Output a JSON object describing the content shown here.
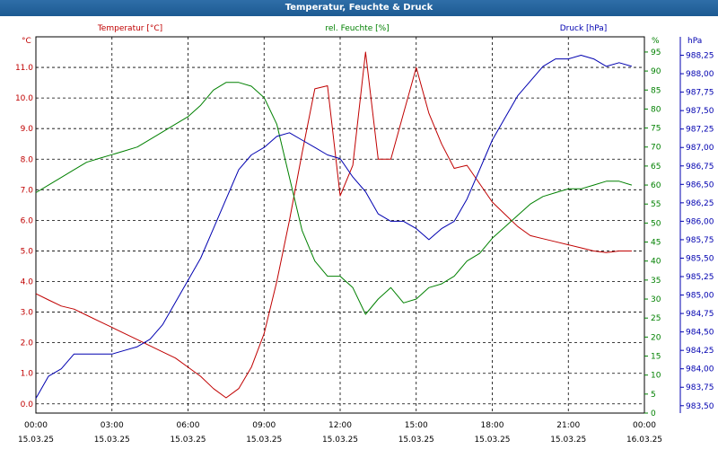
{
  "chart_data": {
    "type": "line",
    "title": "Temperatur, Feuchte & Druck",
    "x": [
      "15.03.25 00:00",
      "15.03.25 00:30",
      "15.03.25 01:00",
      "15.03.25 01:30",
      "15.03.25 02:00",
      "15.03.25 02:30",
      "15.03.25 03:00",
      "15.03.25 03:30",
      "15.03.25 04:00",
      "15.03.25 04:30",
      "15.03.25 05:00",
      "15.03.25 05:30",
      "15.03.25 06:00",
      "15.03.25 06:30",
      "15.03.25 07:00",
      "15.03.25 07:30",
      "15.03.25 08:00",
      "15.03.25 08:30",
      "15.03.25 09:00",
      "15.03.25 09:30",
      "15.03.25 10:00",
      "15.03.25 10:30",
      "15.03.25 11:00",
      "15.03.25 11:30",
      "15.03.25 12:00",
      "15.03.25 12:30",
      "15.03.25 13:00",
      "15.03.25 13:30",
      "15.03.25 14:00",
      "15.03.25 14:30",
      "15.03.25 15:00",
      "15.03.25 15:30",
      "15.03.25 16:00",
      "15.03.25 16:30",
      "15.03.25 17:00",
      "15.03.25 17:30",
      "15.03.25 18:00",
      "15.03.25 18:30",
      "15.03.25 19:00",
      "15.03.25 19:30",
      "15.03.25 20:00",
      "15.03.25 20:30",
      "15.03.25 21:00",
      "15.03.25 21:30",
      "15.03.25 22:00",
      "15.03.25 22:30",
      "15.03.25 23:00",
      "15.03.25 23:30"
    ],
    "series": [
      {
        "name": "Temperatur [°C]",
        "axis": "left",
        "color": "#c00000",
        "values": [
          3.6,
          3.4,
          3.2,
          3.1,
          2.9,
          2.7,
          2.5,
          2.3,
          2.1,
          1.9,
          1.7,
          1.5,
          1.2,
          0.9,
          0.5,
          0.2,
          0.5,
          1.2,
          2.3,
          4.0,
          6.0,
          8.2,
          10.3,
          10.4,
          6.8,
          7.8,
          11.5,
          8.0,
          8.0,
          9.5,
          11.0,
          9.5,
          8.5,
          7.7,
          7.8,
          7.2,
          6.6,
          6.2,
          5.8,
          5.5,
          5.4,
          5.3,
          5.2,
          5.1,
          5.0,
          4.95,
          5.0,
          5.0
        ]
      },
      {
        "name": "rel. Feuchte [%]",
        "axis": "right1",
        "color": "#008000",
        "values": [
          58,
          60,
          62,
          64,
          66,
          67,
          68,
          69,
          70,
          72,
          74,
          76,
          78,
          81,
          85,
          87,
          87,
          86,
          83,
          76,
          62,
          48,
          40,
          36,
          36,
          33,
          26,
          30,
          33,
          29,
          30,
          33,
          34,
          36,
          40,
          42,
          46,
          49,
          52,
          55,
          57,
          58,
          59,
          59,
          60,
          61,
          61,
          60
        ]
      },
      {
        "name": "Druck [hPa]",
        "axis": "right2",
        "color": "#0000b0",
        "values": [
          983.6,
          983.9,
          984.0,
          984.2,
          984.2,
          984.2,
          984.2,
          984.25,
          984.3,
          984.4,
          984.6,
          984.9,
          985.2,
          985.5,
          985.9,
          986.3,
          986.7,
          986.9,
          987.0,
          987.15,
          987.2,
          987.1,
          987.0,
          986.9,
          986.85,
          986.6,
          986.4,
          986.1,
          986.0,
          986.0,
          985.9,
          985.75,
          985.9,
          986.0,
          986.3,
          986.7,
          987.1,
          987.4,
          987.7,
          987.9,
          988.1,
          988.2,
          988.2,
          988.25,
          988.2,
          988.1,
          988.15,
          988.1
        ]
      }
    ],
    "x_ticks": [
      {
        "time": "00:00",
        "date": "15.03.25"
      },
      {
        "time": "03:00",
        "date": "15.03.25"
      },
      {
        "time": "06:00",
        "date": "15.03.25"
      },
      {
        "time": "09:00",
        "date": "15.03.25"
      },
      {
        "time": "12:00",
        "date": "15.03.25"
      },
      {
        "time": "15:00",
        "date": "15.03.25"
      },
      {
        "time": "18:00",
        "date": "15.03.25"
      },
      {
        "time": "21:00",
        "date": "15.03.25"
      },
      {
        "time": "00:00",
        "date": "16.03.25"
      }
    ],
    "axes": {
      "left": {
        "unit": "°C",
        "min": -0.3,
        "max": 12.0,
        "ticks": [
          "0.0",
          "1.0",
          "2.0",
          "3.0",
          "4.0",
          "5.0",
          "6.0",
          "7.0",
          "8.0",
          "9.0",
          "10.0",
          "11.0"
        ],
        "tick_start": 0,
        "tick_step": 1
      },
      "right1": {
        "unit": "%",
        "min": 0,
        "max": 99,
        "ticks": [
          "0",
          "5",
          "10",
          "15",
          "20",
          "25",
          "30",
          "35",
          "40",
          "45",
          "50",
          "55",
          "60",
          "65",
          "70",
          "75",
          "80",
          "85",
          "90",
          "95"
        ],
        "tick_start": 0,
        "tick_step": 5
      },
      "right2": {
        "unit": "hPa",
        "min": 983.4,
        "max": 988.5,
        "ticks": [
          "983,50",
          "983,75",
          "984,00",
          "984,25",
          "984,50",
          "984,75",
          "985,00",
          "985,25",
          "985,50",
          "985,75",
          "986,00",
          "986,25",
          "986,50",
          "986,75",
          "987,00",
          "987,25",
          "987,50",
          "987,75",
          "988,00",
          "988,25"
        ],
        "tick_start": 983.5,
        "tick_step": 0.25
      }
    },
    "x_step_minutes": 30,
    "x_span_minutes": 1440,
    "grid": true
  }
}
